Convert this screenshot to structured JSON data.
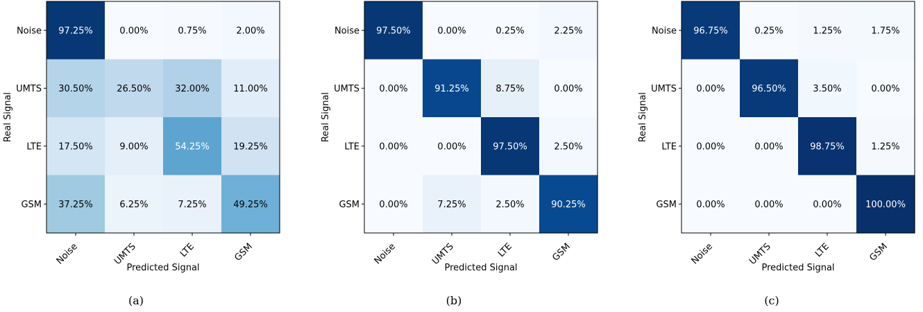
{
  "figure": {
    "captions": [
      "(a)",
      "(b)",
      "(c)"
    ]
  },
  "chart_data": [
    {
      "type": "heatmap",
      "title": "",
      "xlabel": "Predicted Signal",
      "ylabel": "Real Signal",
      "x_categories": [
        "Noise",
        "UMTS",
        "LTE",
        "GSM"
      ],
      "y_categories": [
        "Noise",
        "UMTS",
        "LTE",
        "GSM"
      ],
      "values": [
        [
          97.25,
          0.0,
          0.75,
          2.0
        ],
        [
          30.5,
          26.5,
          32.0,
          11.0
        ],
        [
          17.5,
          9.0,
          54.25,
          19.25
        ],
        [
          37.25,
          6.25,
          7.25,
          49.25
        ]
      ],
      "value_labels": [
        [
          "97.25%",
          "0.00%",
          "0.75%",
          "2.00%"
        ],
        [
          "30.50%",
          "26.50%",
          "32.00%",
          "11.00%"
        ],
        [
          "17.50%",
          "9.00%",
          "54.25%",
          "19.25%"
        ],
        [
          "37.25%",
          "6.25%",
          "7.25%",
          "49.25%"
        ]
      ],
      "colormap": "Blues",
      "value_range": [
        0,
        100
      ]
    },
    {
      "type": "heatmap",
      "title": "",
      "xlabel": "Predicted Signal",
      "ylabel": "Real Signal",
      "x_categories": [
        "Noise",
        "UMTS",
        "LTE",
        "GSM"
      ],
      "y_categories": [
        "Noise",
        "UMTS",
        "LTE",
        "GSM"
      ],
      "values": [
        [
          97.5,
          0.0,
          0.25,
          2.25
        ],
        [
          0.0,
          91.25,
          8.75,
          0.0
        ],
        [
          0.0,
          0.0,
          97.5,
          2.5
        ],
        [
          0.0,
          7.25,
          2.5,
          90.25
        ]
      ],
      "value_labels": [
        [
          "97.50%",
          "0.00%",
          "0.25%",
          "2.25%"
        ],
        [
          "0.00%",
          "91.25%",
          "8.75%",
          "0.00%"
        ],
        [
          "0.00%",
          "0.00%",
          "97.50%",
          "2.50%"
        ],
        [
          "0.00%",
          "7.25%",
          "2.50%",
          "90.25%"
        ]
      ],
      "colormap": "Blues",
      "value_range": [
        0,
        100
      ]
    },
    {
      "type": "heatmap",
      "title": "",
      "xlabel": "Predicted Signal",
      "ylabel": "Real Signal",
      "x_categories": [
        "Noise",
        "UMTS",
        "LTE",
        "GSM"
      ],
      "y_categories": [
        "Noise",
        "UMTS",
        "LTE",
        "GSM"
      ],
      "values": [
        [
          96.75,
          0.25,
          1.25,
          1.75
        ],
        [
          0.0,
          96.5,
          3.5,
          0.0
        ],
        [
          0.0,
          0.0,
          98.75,
          1.25
        ],
        [
          0.0,
          0.0,
          0.0,
          100.0
        ]
      ],
      "value_labels": [
        [
          "96.75%",
          "0.25%",
          "1.25%",
          "1.75%"
        ],
        [
          "0.00%",
          "96.50%",
          "3.50%",
          "0.00%"
        ],
        [
          "0.00%",
          "0.00%",
          "98.75%",
          "1.25%"
        ],
        [
          "0.00%",
          "0.00%",
          "0.00%",
          "100.00%"
        ]
      ],
      "colormap": "Blues",
      "value_range": [
        0,
        100
      ]
    }
  ]
}
